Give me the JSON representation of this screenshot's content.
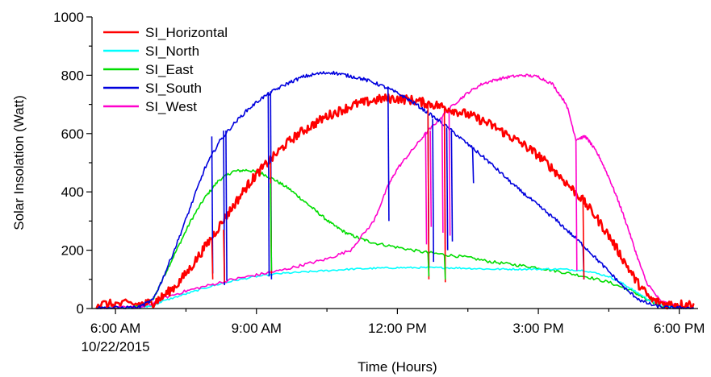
{
  "chart_data": {
    "type": "line",
    "title": "",
    "xlabel": "Time (Hours)",
    "ylabel": "Solar Insolation (Watt)",
    "date_label": "10/22/2015",
    "xlim": [
      5.5,
      18.4
    ],
    "ylim": [
      0,
      1000
    ],
    "x_ticks": [
      {
        "value": 6,
        "label": "6:00 AM"
      },
      {
        "value": 9,
        "label": "9:00 AM"
      },
      {
        "value": 12,
        "label": "12:00 PM"
      },
      {
        "value": 15,
        "label": "3:00 PM"
      },
      {
        "value": 18,
        "label": "6:00 PM"
      }
    ],
    "x_minor_ticks": [
      7.5,
      10.5,
      13.5,
      16.5
    ],
    "y_ticks": [
      {
        "value": 0,
        "label": "0"
      },
      {
        "value": 200,
        "label": "200"
      },
      {
        "value": 400,
        "label": "400"
      },
      {
        "value": 600,
        "label": "600"
      },
      {
        "value": 800,
        "label": "800"
      },
      {
        "value": 1000,
        "label": "1000"
      }
    ],
    "y_minor_ticks": [
      100,
      300,
      500,
      700,
      900
    ],
    "grid": false,
    "legend_position": "top-left",
    "series": [
      {
        "name": "SI_Horizontal",
        "color": "#ff0000",
        "width": 2.6,
        "noise": 16,
        "x": [
          5.6,
          6.0,
          6.5,
          6.8,
          7.0,
          7.3,
          7.6,
          7.9,
          8.2,
          8.5,
          8.8,
          9.0,
          9.3,
          9.6,
          9.9,
          10.2,
          10.5,
          10.8,
          11.1,
          11.4,
          11.7,
          12.0,
          12.3,
          12.6,
          12.9,
          13.2,
          13.5,
          13.8,
          14.1,
          14.4,
          14.7,
          15.0,
          15.3,
          15.6,
          15.9,
          16.2,
          16.5,
          16.8,
          17.1,
          17.4,
          17.7,
          18.0,
          18.3
        ],
        "y": [
          15,
          15,
          15,
          20,
          40,
          80,
          140,
          210,
          280,
          350,
          420,
          460,
          510,
          560,
          600,
          630,
          660,
          680,
          700,
          710,
          720,
          720,
          715,
          705,
          695,
          680,
          665,
          645,
          620,
          590,
          560,
          525,
          480,
          430,
          380,
          320,
          250,
          170,
          90,
          30,
          15,
          15,
          15
        ]
      },
      {
        "name": "SI_North",
        "color": "#00ffff",
        "width": 1.6,
        "noise": 3,
        "x": [
          5.6,
          6.0,
          6.5,
          6.8,
          7.0,
          7.5,
          8.0,
          8.5,
          9.0,
          9.5,
          10.0,
          10.5,
          11.0,
          11.5,
          12.0,
          12.5,
          13.0,
          13.5,
          14.0,
          14.5,
          15.0,
          15.5,
          16.0,
          16.5,
          16.8,
          17.1,
          17.4,
          17.7,
          18.0,
          18.3
        ],
        "y": [
          2,
          2,
          3,
          10,
          25,
          50,
          75,
          95,
          110,
          120,
          125,
          130,
          135,
          138,
          140,
          140,
          140,
          138,
          135,
          135,
          135,
          135,
          130,
          110,
          85,
          55,
          25,
          8,
          2,
          2
        ]
      },
      {
        "name": "SI_East",
        "color": "#00dd00",
        "width": 1.6,
        "noise": 5,
        "x": [
          5.6,
          6.0,
          6.5,
          6.8,
          7.0,
          7.3,
          7.6,
          7.9,
          8.2,
          8.5,
          8.8,
          9.1,
          9.4,
          9.7,
          10.0,
          10.3,
          10.6,
          10.9,
          11.2,
          11.5,
          12.0,
          12.5,
          13.0,
          13.5,
          14.0,
          14.5,
          15.0,
          15.5,
          16.0,
          16.5,
          17.0,
          17.3,
          17.6,
          18.0,
          18.3
        ],
        "y": [
          2,
          2,
          5,
          30,
          100,
          200,
          300,
          380,
          440,
          470,
          475,
          465,
          440,
          410,
          370,
          330,
          290,
          260,
          240,
          225,
          210,
          195,
          185,
          175,
          160,
          150,
          140,
          125,
          110,
          90,
          60,
          30,
          10,
          2,
          2
        ]
      },
      {
        "name": "SI_South",
        "color": "#0000dd",
        "width": 1.6,
        "noise": 6,
        "x": [
          5.6,
          6.0,
          6.5,
          6.8,
          7.0,
          7.3,
          7.6,
          7.9,
          8.2,
          8.5,
          8.8,
          9.1,
          9.4,
          9.7,
          10.0,
          10.3,
          10.6,
          10.9,
          11.2,
          11.5,
          11.8,
          12.1,
          12.4,
          12.7,
          13.0,
          13.3,
          13.6,
          13.9,
          14.2,
          14.5,
          14.8,
          15.1,
          15.4,
          15.7,
          16.0,
          16.3,
          16.6,
          16.9,
          17.2,
          17.5,
          17.8,
          18.0,
          18.3
        ],
        "y": [
          2,
          2,
          5,
          30,
          100,
          220,
          350,
          480,
          570,
          630,
          680,
          720,
          750,
          775,
          795,
          805,
          810,
          800,
          790,
          775,
          755,
          730,
          700,
          665,
          630,
          590,
          550,
          510,
          465,
          420,
          380,
          340,
          300,
          255,
          210,
          160,
          110,
          60,
          25,
          8,
          2,
          2,
          2
        ]
      },
      {
        "name": "SI_West",
        "color": "#ff00cc",
        "width": 1.6,
        "noise": 5,
        "x": [
          5.6,
          6.0,
          6.5,
          6.8,
          7.0,
          7.5,
          8.0,
          8.5,
          9.0,
          9.5,
          10.0,
          10.5,
          11.0,
          11.5,
          11.8,
          12.0,
          12.3,
          12.6,
          12.9,
          13.2,
          13.5,
          13.8,
          14.1,
          14.4,
          14.7,
          15.0,
          15.3,
          15.6,
          15.8,
          16.0,
          16.1,
          16.3,
          16.5,
          16.7,
          16.9,
          17.1,
          17.3,
          17.6,
          18.0,
          18.3
        ],
        "y": [
          2,
          2,
          5,
          15,
          35,
          60,
          80,
          100,
          115,
          130,
          150,
          170,
          200,
          300,
          420,
          480,
          540,
          600,
          650,
          700,
          740,
          770,
          785,
          795,
          800,
          795,
          770,
          700,
          580,
          590,
          570,
          520,
          450,
          370,
          280,
          180,
          90,
          25,
          5,
          2
        ]
      }
    ],
    "spikes": [
      {
        "series": 3,
        "x": 8.05,
        "y_from": 590,
        "y_to": 120
      },
      {
        "series": 3,
        "x": 8.3,
        "y_from": 610,
        "y_to": 80
      },
      {
        "series": 3,
        "x": 8.35,
        "y_from": 610,
        "y_to": 95
      },
      {
        "series": 3,
        "x": 9.25,
        "y_from": 740,
        "y_to": 110
      },
      {
        "series": 3,
        "x": 9.3,
        "y_from": 745,
        "y_to": 100
      },
      {
        "series": 3,
        "x": 11.8,
        "y_from": 760,
        "y_to": 300
      },
      {
        "series": 3,
        "x": 12.65,
        "y_from": 660,
        "y_to": 140
      },
      {
        "series": 3,
        "x": 12.75,
        "y_from": 650,
        "y_to": 160
      },
      {
        "series": 3,
        "x": 13.05,
        "y_from": 620,
        "y_to": 200
      },
      {
        "series": 3,
        "x": 13.15,
        "y_from": 610,
        "y_to": 230
      },
      {
        "series": 3,
        "x": 13.6,
        "y_from": 550,
        "y_to": 430
      },
      {
        "series": 3,
        "x": 15.95,
        "y_from": 220,
        "y_to": 100
      },
      {
        "series": 4,
        "x": 12.6,
        "y_from": 600,
        "y_to": 220
      },
      {
        "series": 4,
        "x": 12.7,
        "y_from": 610,
        "y_to": 280
      },
      {
        "series": 4,
        "x": 12.95,
        "y_from": 655,
        "y_to": 260
      },
      {
        "series": 4,
        "x": 13.0,
        "y_from": 660,
        "y_to": 200
      },
      {
        "series": 4,
        "x": 13.1,
        "y_from": 675,
        "y_to": 250
      },
      {
        "series": 4,
        "x": 15.8,
        "y_from": 580,
        "y_to": 130
      },
      {
        "series": 0,
        "x": 8.05,
        "y_from": 240,
        "y_to": 100
      },
      {
        "series": 0,
        "x": 8.3,
        "y_from": 270,
        "y_to": 90
      },
      {
        "series": 0,
        "x": 9.3,
        "y_from": 500,
        "y_to": 120
      },
      {
        "series": 0,
        "x": 12.65,
        "y_from": 705,
        "y_to": 100
      },
      {
        "series": 0,
        "x": 13.0,
        "y_from": 695,
        "y_to": 90
      },
      {
        "series": 0,
        "x": 15.95,
        "y_from": 380,
        "y_to": 100
      },
      {
        "series": 2,
        "x": 9.3,
        "y_from": 430,
        "y_to": 130
      },
      {
        "series": 2,
        "x": 12.65,
        "y_from": 195,
        "y_to": 110
      },
      {
        "series": 2,
        "x": 13.0,
        "y_from": 185,
        "y_to": 100
      }
    ]
  }
}
